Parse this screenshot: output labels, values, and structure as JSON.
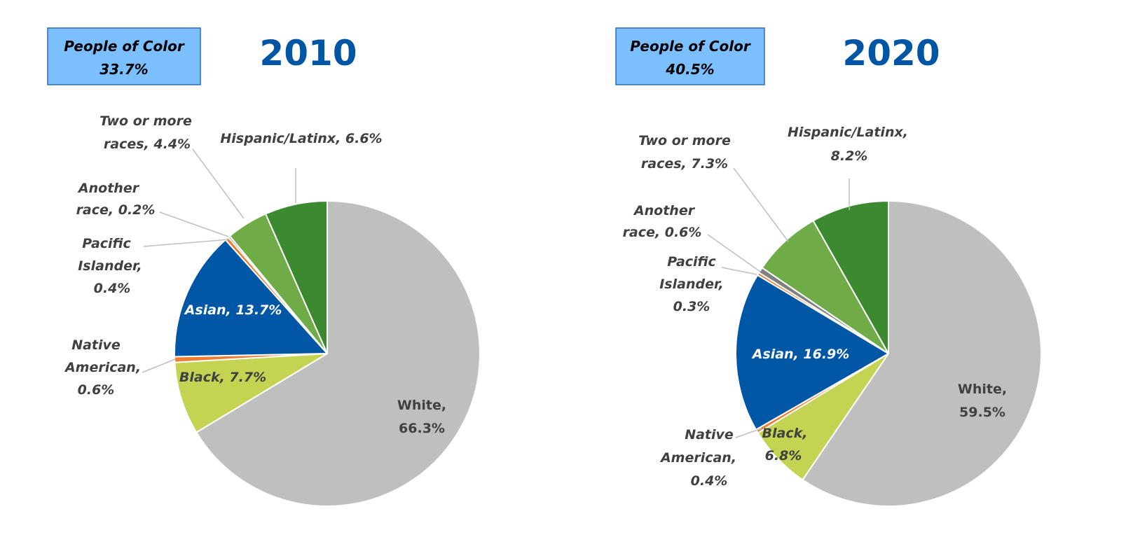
{
  "chart_data": [
    {
      "type": "pie",
      "title": "2010",
      "callout": {
        "line1": "People of Color",
        "line2": "33.7%"
      },
      "categories": [
        "White",
        "Black",
        "Native American",
        "Asian",
        "Pacific Islander",
        "Another race",
        "Two or more races",
        "Hispanic/Latinx"
      ],
      "values": [
        66.3,
        7.7,
        0.6,
        13.7,
        0.4,
        0.2,
        4.4,
        6.6
      ],
      "labels": [
        [
          "White,",
          "66.3%"
        ],
        [
          "Black, 7.7%"
        ],
        [
          "Native",
          "American,",
          "0.6%"
        ],
        [
          "Asian, 13.7%"
        ],
        [
          "Pacific",
          "Islander,",
          "0.4%"
        ],
        [
          "Another",
          "race, 0.2%"
        ],
        [
          "Two or more",
          "races, 4.4%"
        ],
        [
          "Hispanic/Latinx,  6.6%"
        ]
      ]
    },
    {
      "type": "pie",
      "title": "2020",
      "callout": {
        "line1": "People of Color",
        "line2": "40.5%"
      },
      "categories": [
        "White",
        "Black",
        "Native American",
        "Asian",
        "Pacific Islander",
        "Another race",
        "Two or more races",
        "Hispanic/Latinx"
      ],
      "values": [
        59.5,
        6.8,
        0.4,
        16.9,
        0.3,
        0.6,
        7.3,
        8.2
      ],
      "labels": [
        [
          "White,",
          "59.5%"
        ],
        [
          "Black,",
          "6.8%"
        ],
        [
          "Native",
          "American,",
          "0.4%"
        ],
        [
          "Asian, 16.9%"
        ],
        [
          "Pacific",
          "Islander,",
          "0.3%"
        ],
        [
          "Another",
          "race, 0.6%"
        ],
        [
          "Two or more",
          "races, 7.3%"
        ],
        [
          "Hispanic/Latinx,",
          "8.2%"
        ]
      ]
    }
  ],
  "colors": [
    "#BFBFBF",
    "#C5D352",
    "#ED7D31",
    "#0057A6",
    "#ED7D31",
    "#808080",
    "#6FAC47",
    "#3B8A2F"
  ],
  "callout_fill": "#7BBFFF",
  "callout_border": "#2F6FB0",
  "title_color": "#0055A4"
}
